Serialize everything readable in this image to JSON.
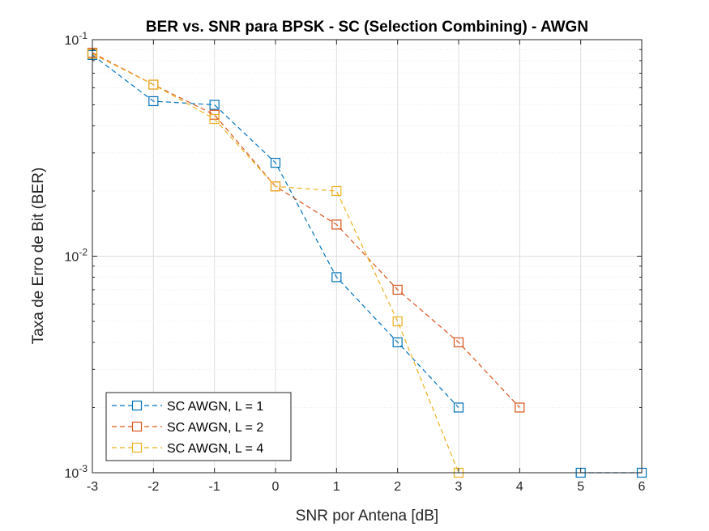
{
  "chart_data": {
    "type": "line",
    "title": "BER vs. SNR para BPSK - SC (Selection Combining) - AWGN",
    "xlabel": "SNR por Antena [dB]",
    "ylabel": "Taxa de Erro de Bit (BER)",
    "xlim": [
      -3,
      6
    ],
    "ylim": [
      0.001,
      0.1
    ],
    "yscale": "log",
    "grid": true,
    "legend_position": "bottom-left",
    "x_ticks": [
      -3,
      -2,
      -1,
      0,
      1,
      2,
      3,
      4,
      5,
      6
    ],
    "x_tick_labels": [
      "-3",
      "-2",
      "-1",
      "0",
      "1",
      "2",
      "3",
      "4",
      "5",
      "6"
    ],
    "y_ticks": [
      {
        "base": "10",
        "exp": "-3",
        "value": 0.001
      },
      {
        "base": "10",
        "exp": "-2",
        "value": 0.01
      },
      {
        "base": "10",
        "exp": "-1",
        "value": 0.1
      }
    ],
    "series": [
      {
        "name": "SC AWGN, L = 1",
        "color": "#0072BD",
        "marker": "square",
        "line_style": "dashed",
        "segments": [
          {
            "x": [
              -3,
              -2,
              -1,
              0,
              1,
              2,
              3
            ],
            "y": [
              0.085,
              0.052,
              0.05,
              0.027,
              0.008,
              0.004,
              0.002
            ]
          },
          {
            "x": [
              5,
              6
            ],
            "y": [
              0.001,
              0.001
            ]
          }
        ]
      },
      {
        "name": "SC AWGN, L = 2",
        "color": "#D95319",
        "marker": "square",
        "line_style": "dashed",
        "segments": [
          {
            "x": [
              -3,
              -2,
              -1,
              0,
              1,
              2,
              3,
              4
            ],
            "y": [
              0.087,
              0.062,
              0.045,
              0.021,
              0.014,
              0.007,
              0.004,
              0.002
            ]
          }
        ]
      },
      {
        "name": "SC AWGN, L = 4",
        "color": "#EDB120",
        "marker": "square",
        "line_style": "dashed",
        "segments": [
          {
            "x": [
              -3,
              -2,
              -1,
              0,
              1,
              2,
              3
            ],
            "y": [
              0.086,
              0.062,
              0.043,
              0.021,
              0.02,
              0.005,
              0.001
            ]
          }
        ]
      }
    ]
  }
}
